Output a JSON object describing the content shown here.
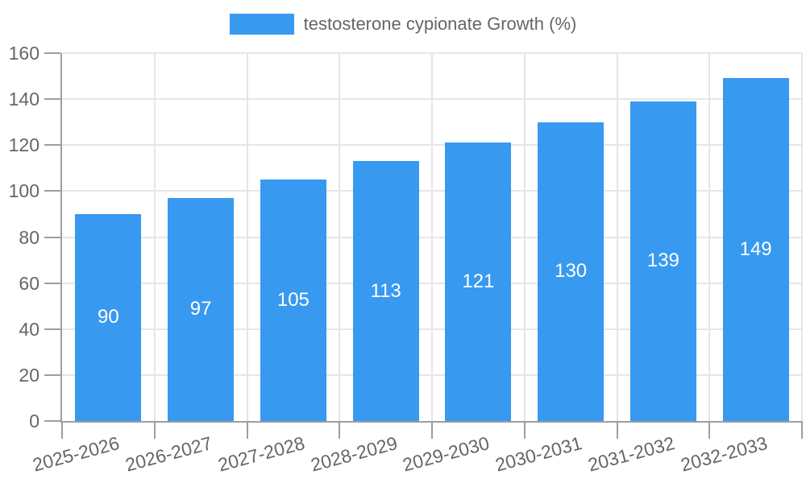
{
  "chart_data": {
    "type": "bar",
    "title": "",
    "legend": "testosterone cypionate Growth (%)",
    "legend_position": "top",
    "categories": [
      "2025-2026",
      "2026-2027",
      "2027-2028",
      "2028-2029",
      "2029-2030",
      "2030-2031",
      "2031-2032",
      "2032-2033"
    ],
    "series": [
      {
        "name": "testosterone cypionate Growth (%)",
        "values": [
          90,
          97,
          105,
          113,
          121,
          130,
          139,
          149
        ]
      }
    ],
    "xlabel": "",
    "ylabel": "",
    "ylim": [
      0,
      160
    ],
    "yticks": [
      0,
      20,
      40,
      60,
      80,
      100,
      120,
      140,
      160
    ],
    "grid": true,
    "colors": {
      "bar": "#3899f0",
      "bar_label": "#ffffff",
      "axis_text": "#666666",
      "legend_text": "#666666",
      "gridline": "#e6e6e6",
      "axis_line": "#9e9e9e"
    }
  }
}
